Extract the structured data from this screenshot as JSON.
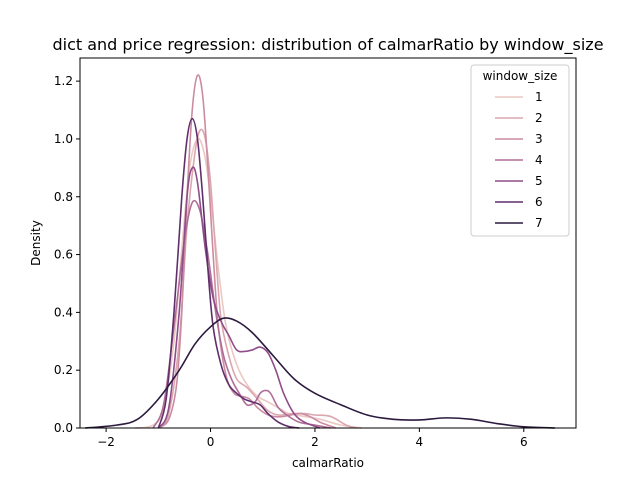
{
  "chart_data": {
    "type": "line",
    "title": "dict and price regression: distribution of calmarRatio by window_size",
    "xlabel": "calmarRatio",
    "ylabel": "Density",
    "xlim": [
      -2.5,
      7.0
    ],
    "ylim": [
      0.0,
      1.28
    ],
    "xticks": [
      -2,
      0,
      2,
      4,
      6
    ],
    "yticks": [
      0.0,
      0.2,
      0.4,
      0.6,
      0.8,
      1.0,
      1.2
    ],
    "grid": false,
    "legend": {
      "title": "window_size",
      "position": "top-right"
    },
    "series": [
      {
        "name": "1",
        "color": "#ebc8c3",
        "points": [
          [
            -1.45,
            0
          ],
          [
            -1.1,
            0.01
          ],
          [
            -0.9,
            0.07
          ],
          [
            -0.7,
            0.3
          ],
          [
            -0.55,
            0.62
          ],
          [
            -0.4,
            0.9
          ],
          [
            -0.25,
            1.0
          ],
          [
            -0.12,
            0.95
          ],
          [
            0.0,
            0.8
          ],
          [
            0.15,
            0.55
          ],
          [
            0.3,
            0.35
          ],
          [
            0.5,
            0.22
          ],
          [
            0.7,
            0.15
          ],
          [
            0.9,
            0.11
          ],
          [
            1.1,
            0.09
          ],
          [
            1.3,
            0.07
          ],
          [
            1.5,
            0.05
          ],
          [
            1.8,
            0.04
          ],
          [
            2.1,
            0.03
          ],
          [
            2.5,
            0.01
          ],
          [
            2.9,
            0
          ]
        ]
      },
      {
        "name": "2",
        "color": "#dba7ae",
        "points": [
          [
            -1.0,
            0
          ],
          [
            -0.8,
            0.05
          ],
          [
            -0.6,
            0.3
          ],
          [
            -0.45,
            0.7
          ],
          [
            -0.3,
            0.95
          ],
          [
            -0.2,
            1.03
          ],
          [
            -0.1,
            1.0
          ],
          [
            0.0,
            0.85
          ],
          [
            0.1,
            0.6
          ],
          [
            0.2,
            0.38
          ],
          [
            0.35,
            0.25
          ],
          [
            0.5,
            0.17
          ],
          [
            0.7,
            0.14
          ],
          [
            0.9,
            0.1
          ],
          [
            1.1,
            0.06
          ],
          [
            1.3,
            0.045
          ],
          [
            1.6,
            0.05
          ],
          [
            1.8,
            0.05
          ],
          [
            2.0,
            0.045
          ],
          [
            2.3,
            0.04
          ],
          [
            2.6,
            0.01
          ],
          [
            2.8,
            0
          ]
        ]
      },
      {
        "name": "3",
        "color": "#cb8ca2",
        "points": [
          [
            -1.0,
            0
          ],
          [
            -0.8,
            0.03
          ],
          [
            -0.65,
            0.15
          ],
          [
            -0.55,
            0.4
          ],
          [
            -0.45,
            0.8
          ],
          [
            -0.35,
            1.1
          ],
          [
            -0.25,
            1.22
          ],
          [
            -0.15,
            1.15
          ],
          [
            -0.05,
            0.9
          ],
          [
            0.05,
            0.6
          ],
          [
            0.15,
            0.35
          ],
          [
            0.3,
            0.18
          ],
          [
            0.45,
            0.12
          ],
          [
            0.6,
            0.11
          ],
          [
            0.75,
            0.1
          ],
          [
            0.9,
            0.07
          ],
          [
            1.05,
            0.05
          ],
          [
            1.2,
            0.04
          ],
          [
            1.4,
            0.04
          ],
          [
            1.7,
            0.05
          ],
          [
            1.9,
            0.04
          ],
          [
            2.1,
            0.02
          ],
          [
            2.4,
            0
          ]
        ]
      },
      {
        "name": "4",
        "color": "#b06e96",
        "points": [
          [
            -1.1,
            0
          ],
          [
            -0.9,
            0.08
          ],
          [
            -0.7,
            0.35
          ],
          [
            -0.5,
            0.65
          ],
          [
            -0.35,
            0.78
          ],
          [
            -0.2,
            0.75
          ],
          [
            -0.05,
            0.6
          ],
          [
            0.1,
            0.4
          ],
          [
            0.25,
            0.25
          ],
          [
            0.4,
            0.17
          ],
          [
            0.55,
            0.12
          ],
          [
            0.7,
            0.08
          ],
          [
            0.85,
            0.09
          ],
          [
            0.95,
            0.12
          ],
          [
            1.05,
            0.13
          ],
          [
            1.15,
            0.12
          ],
          [
            1.3,
            0.07
          ],
          [
            1.5,
            0.04
          ],
          [
            1.7,
            0.02
          ],
          [
            2.0,
            0.01
          ],
          [
            2.3,
            0
          ]
        ]
      },
      {
        "name": "5",
        "color": "#8f4d89",
        "points": [
          [
            -1.0,
            0
          ],
          [
            -0.8,
            0.07
          ],
          [
            -0.6,
            0.4
          ],
          [
            -0.45,
            0.8
          ],
          [
            -0.35,
            0.9
          ],
          [
            -0.25,
            0.85
          ],
          [
            -0.1,
            0.62
          ],
          [
            0.05,
            0.45
          ],
          [
            0.2,
            0.37
          ],
          [
            0.35,
            0.32
          ],
          [
            0.5,
            0.27
          ],
          [
            0.65,
            0.265
          ],
          [
            0.8,
            0.27
          ],
          [
            0.95,
            0.28
          ],
          [
            1.1,
            0.26
          ],
          [
            1.25,
            0.2
          ],
          [
            1.4,
            0.12
          ],
          [
            1.6,
            0.05
          ],
          [
            1.8,
            0.02
          ],
          [
            2.1,
            0
          ]
        ]
      },
      {
        "name": "6",
        "color": "#5f2f6b",
        "points": [
          [
            -1.0,
            0
          ],
          [
            -0.85,
            0.1
          ],
          [
            -0.7,
            0.4
          ],
          [
            -0.55,
            0.8
          ],
          [
            -0.45,
            1.0
          ],
          [
            -0.35,
            1.07
          ],
          [
            -0.25,
            1.0
          ],
          [
            -0.15,
            0.8
          ],
          [
            -0.05,
            0.55
          ],
          [
            0.05,
            0.35
          ],
          [
            0.2,
            0.22
          ],
          [
            0.35,
            0.15
          ],
          [
            0.5,
            0.12
          ],
          [
            0.65,
            0.1
          ],
          [
            0.8,
            0.09
          ],
          [
            0.95,
            0.08
          ],
          [
            1.1,
            0.05
          ],
          [
            1.3,
            0.02
          ],
          [
            1.5,
            0.005
          ],
          [
            1.7,
            0
          ]
        ]
      },
      {
        "name": "7",
        "color": "#2b1a3e",
        "points": [
          [
            -2.4,
            0
          ],
          [
            -1.8,
            0.01
          ],
          [
            -1.4,
            0.03
          ],
          [
            -1.0,
            0.1
          ],
          [
            -0.6,
            0.2
          ],
          [
            -0.3,
            0.29
          ],
          [
            0.0,
            0.35
          ],
          [
            0.25,
            0.38
          ],
          [
            0.5,
            0.37
          ],
          [
            0.8,
            0.33
          ],
          [
            1.2,
            0.25
          ],
          [
            1.6,
            0.17
          ],
          [
            2.0,
            0.12
          ],
          [
            2.5,
            0.08
          ],
          [
            3.0,
            0.045
          ],
          [
            3.5,
            0.03
          ],
          [
            4.0,
            0.028
          ],
          [
            4.5,
            0.035
          ],
          [
            5.0,
            0.03
          ],
          [
            5.5,
            0.015
          ],
          [
            6.0,
            0.004
          ],
          [
            6.6,
            0
          ]
        ]
      }
    ]
  }
}
